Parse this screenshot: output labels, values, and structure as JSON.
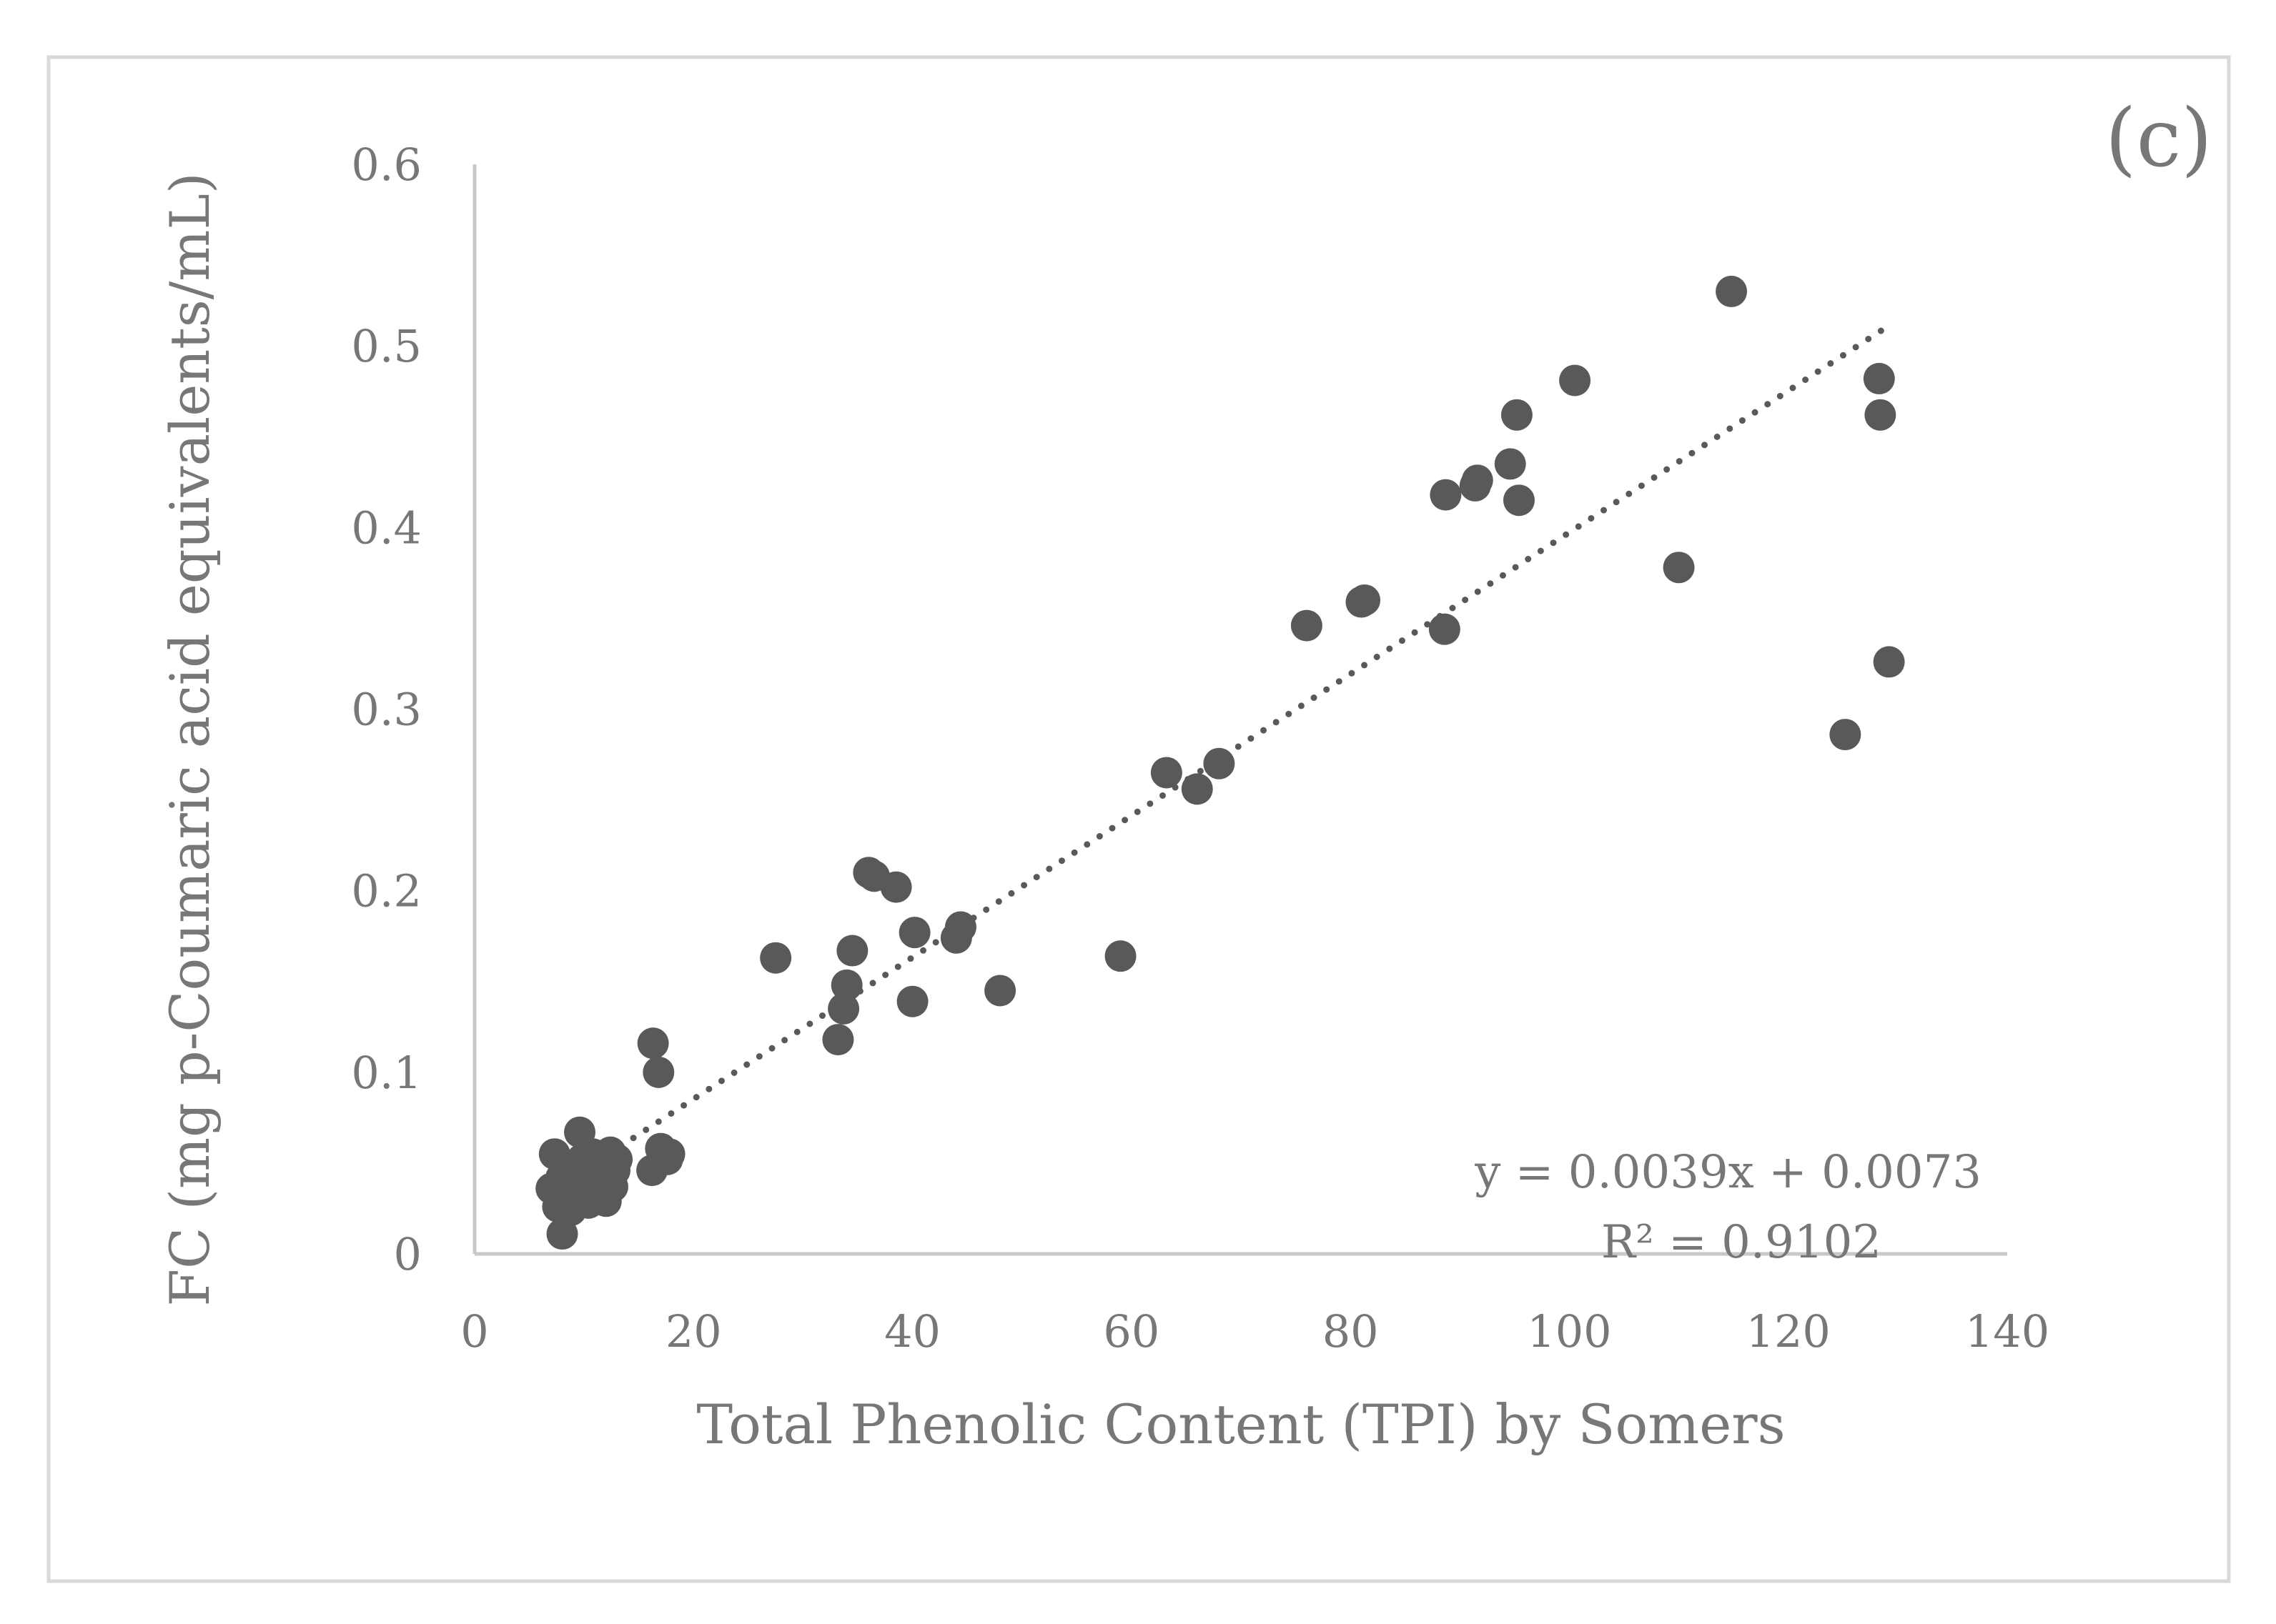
{
  "chart_data": {
    "type": "scatter",
    "panel_label": "(c)",
    "xlabel": "Total Phenolic Content (TPI) by Somers",
    "ylabel": "FC (mg p-Coumaric acid equivalents/mL)",
    "xlim": [
      0,
      140
    ],
    "ylim": [
      0,
      0.6
    ],
    "xticks": [
      "0",
      "20",
      "40",
      "60",
      "80",
      "100",
      "120",
      "140"
    ],
    "yticks": [
      "0",
      "0.1",
      "0.2",
      "0.3",
      "0.4",
      "0.5",
      "0.6"
    ],
    "grid": false,
    "point_color": "#595959",
    "trendline": {
      "type": "linear",
      "style": "dotted",
      "slope": 0.0039,
      "intercept": 0.0073,
      "x_range": [
        14.5,
        129.5
      ],
      "equation": "y = 0.0039x + 0.0073",
      "r_squared": "R² = 0.9102"
    },
    "points": [
      [
        7.0,
        0.036
      ],
      [
        7.3,
        0.055
      ],
      [
        7.6,
        0.026
      ],
      [
        7.9,
        0.042
      ],
      [
        8.0,
        0.011
      ],
      [
        8.2,
        0.03
      ],
      [
        8.4,
        0.048
      ],
      [
        8.6,
        0.034
      ],
      [
        8.8,
        0.024
      ],
      [
        9.0,
        0.039
      ],
      [
        9.2,
        0.044
      ],
      [
        9.4,
        0.03
      ],
      [
        9.6,
        0.067
      ],
      [
        9.8,
        0.052
      ],
      [
        10.0,
        0.036
      ],
      [
        10.2,
        0.045
      ],
      [
        10.4,
        0.028
      ],
      [
        10.6,
        0.041
      ],
      [
        10.8,
        0.055
      ],
      [
        11.0,
        0.034
      ],
      [
        11.2,
        0.048
      ],
      [
        11.4,
        0.038
      ],
      [
        11.6,
        0.043
      ],
      [
        11.8,
        0.032
      ],
      [
        12.0,
        0.029
      ],
      [
        12.2,
        0.05
      ],
      [
        12.4,
        0.056
      ],
      [
        12.6,
        0.037
      ],
      [
        12.8,
        0.046
      ],
      [
        13.0,
        0.052
      ],
      [
        16.2,
        0.046
      ],
      [
        16.3,
        0.116
      ],
      [
        16.8,
        0.1
      ],
      [
        17.0,
        0.058
      ],
      [
        17.6,
        0.052
      ],
      [
        17.8,
        0.055
      ],
      [
        27.5,
        0.163
      ],
      [
        33.2,
        0.118
      ],
      [
        33.7,
        0.135
      ],
      [
        34.0,
        0.148
      ],
      [
        34.5,
        0.167
      ],
      [
        36.0,
        0.21
      ],
      [
        36.5,
        0.208
      ],
      [
        38.5,
        0.202
      ],
      [
        40.0,
        0.139
      ],
      [
        40.2,
        0.177
      ],
      [
        44.0,
        0.174
      ],
      [
        44.4,
        0.18
      ],
      [
        48.0,
        0.145
      ],
      [
        59.0,
        0.164
      ],
      [
        63.2,
        0.265
      ],
      [
        66.0,
        0.256
      ],
      [
        68.0,
        0.27
      ],
      [
        76.0,
        0.346
      ],
      [
        81.0,
        0.359
      ],
      [
        81.3,
        0.36
      ],
      [
        88.6,
        0.344
      ],
      [
        88.7,
        0.418
      ],
      [
        91.4,
        0.423
      ],
      [
        91.6,
        0.426
      ],
      [
        94.6,
        0.435
      ],
      [
        95.2,
        0.462
      ],
      [
        95.4,
        0.415
      ],
      [
        100.5,
        0.481
      ],
      [
        110.0,
        0.378
      ],
      [
        114.8,
        0.53
      ],
      [
        125.2,
        0.286
      ],
      [
        128.3,
        0.482
      ],
      [
        128.4,
        0.462
      ],
      [
        129.2,
        0.326
      ]
    ]
  }
}
